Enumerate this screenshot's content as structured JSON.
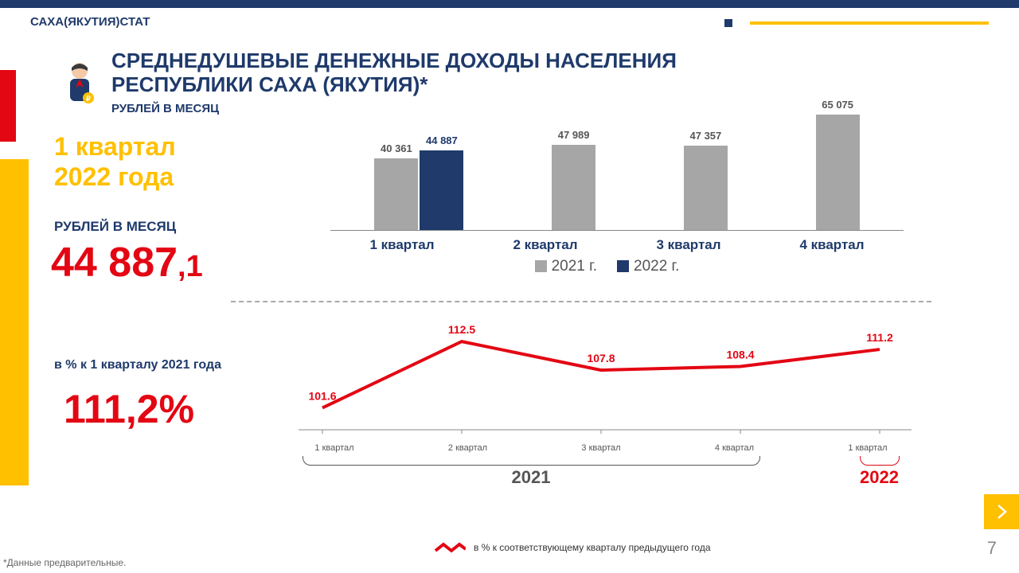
{
  "org_name": "САХА(ЯКУТИЯ)СТАТ",
  "title_line1": "СРЕДНЕДУШЕВЫЕ ДЕНЕЖНЫЕ ДОХОДЫ НАСЕЛЕНИЯ",
  "title_line2": "РЕСПУБЛИКИ САХА (ЯКУТИЯ)*",
  "subtitle": "РУБЛЕЙ В МЕСЯЦ",
  "period": {
    "line1": "1 квартал",
    "line2": "2022 года"
  },
  "value": {
    "label": "РУБЛЕЙ В МЕСЯЦ",
    "main": "44 887",
    "dec": ",1"
  },
  "percent": {
    "label": "в % к 1 кварталу 2021 года",
    "value": "111,2%"
  },
  "footnote": "*Данные предварительные.",
  "page_number": "7",
  "colors": {
    "blue": "#1f3a6b",
    "red": "#e30613",
    "yellow": "#ffc000",
    "grey": "#a6a6a6",
    "text_grey": "#555555"
  },
  "bar_chart": {
    "type": "bar",
    "categories": [
      "1 квартал",
      "2 квартал",
      "3 квартал",
      "4 квартал"
    ],
    "series": [
      {
        "name": "2021 г.",
        "color": "#a6a6a6",
        "values": [
          40361,
          47989,
          47357,
          65075
        ],
        "labels": [
          "40 361",
          "47 989",
          "47 357",
          "65 075"
        ]
      },
      {
        "name": "2022 г.",
        "color": "#1f3a6b",
        "values": [
          44887,
          null,
          null,
          null
        ],
        "labels": [
          "44 887",
          "",
          "",
          ""
        ]
      }
    ],
    "ymax": 65075,
    "label_fontsize": 13,
    "axis_fontsize": 17
  },
  "line_chart": {
    "type": "line",
    "x_labels": [
      "1 квартал",
      "2 квартал",
      "3 квартал",
      "4 квартал",
      "1 квартал"
    ],
    "values": [
      101.6,
      112.5,
      107.8,
      108.4,
      111.2
    ],
    "value_labels": [
      "101.6",
      "112.5",
      "107.8",
      "108.4",
      "111.2"
    ],
    "color": "#e30613",
    "line_width": 4,
    "ymin": 98,
    "ymax": 115,
    "groups": [
      {
        "label": "2021",
        "color": "#555555",
        "start": 0,
        "end": 3
      },
      {
        "label": "2022",
        "color": "#e30613",
        "start": 4,
        "end": 4
      }
    ],
    "legend": "в % к соответствующему кварталу предыдущего года"
  }
}
